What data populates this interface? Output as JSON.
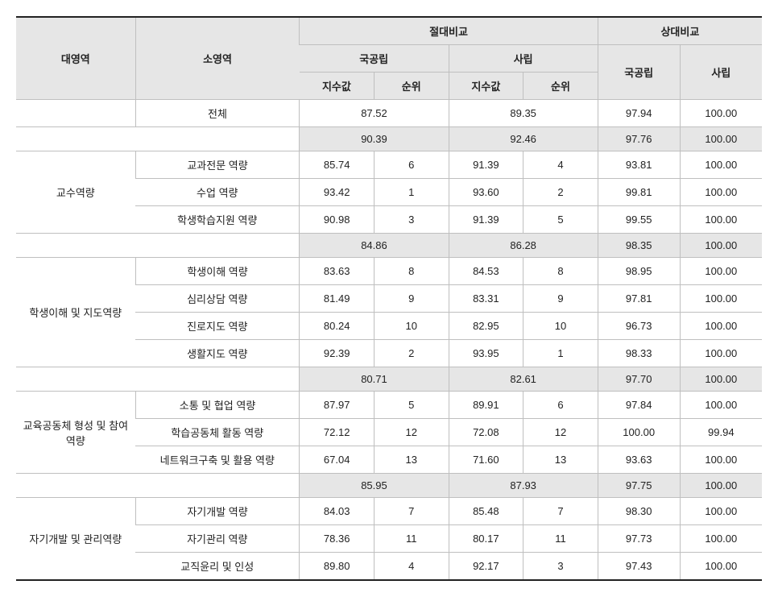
{
  "headers": {
    "majorArea": "대영역",
    "subArea": "소영역",
    "absolute": "절대비교",
    "relative": "상대비교",
    "public": "국공립",
    "private": "사립",
    "index": "지수값",
    "rank": "순위"
  },
  "overall": {
    "label": "전체",
    "abs_public": "87.52",
    "abs_private": "89.35",
    "rel_public": "97.94",
    "rel_private": "100.00"
  },
  "sections": [
    {
      "major": "교수역량",
      "summary": {
        "abs_public": "90.39",
        "abs_private": "92.46",
        "rel_public": "97.76",
        "rel_private": "100.00"
      },
      "rows": [
        {
          "sub": "교과전문 역량",
          "ap_idx": "85.74",
          "ap_rank": "6",
          "pr_idx": "91.39",
          "pr_rank": "4",
          "rp": "93.81",
          "rpr": "100.00"
        },
        {
          "sub": "수업 역량",
          "ap_idx": "93.42",
          "ap_rank": "1",
          "pr_idx": "93.60",
          "pr_rank": "2",
          "rp": "99.81",
          "rpr": "100.00"
        },
        {
          "sub": "학생학습지원 역량",
          "ap_idx": "90.98",
          "ap_rank": "3",
          "pr_idx": "91.39",
          "pr_rank": "5",
          "rp": "99.55",
          "rpr": "100.00"
        }
      ]
    },
    {
      "major": "학생이해 및 지도역량",
      "summary": {
        "abs_public": "84.86",
        "abs_private": "86.28",
        "rel_public": "98.35",
        "rel_private": "100.00"
      },
      "rows": [
        {
          "sub": "학생이해 역량",
          "ap_idx": "83.63",
          "ap_rank": "8",
          "pr_idx": "84.53",
          "pr_rank": "8",
          "rp": "98.95",
          "rpr": "100.00"
        },
        {
          "sub": "심리상담 역량",
          "ap_idx": "81.49",
          "ap_rank": "9",
          "pr_idx": "83.31",
          "pr_rank": "9",
          "rp": "97.81",
          "rpr": "100.00"
        },
        {
          "sub": "진로지도 역량",
          "ap_idx": "80.24",
          "ap_rank": "10",
          "pr_idx": "82.95",
          "pr_rank": "10",
          "rp": "96.73",
          "rpr": "100.00"
        },
        {
          "sub": "생활지도 역량",
          "ap_idx": "92.39",
          "ap_rank": "2",
          "pr_idx": "93.95",
          "pr_rank": "1",
          "rp": "98.33",
          "rpr": "100.00"
        }
      ]
    },
    {
      "major": "교육공동체 형성 및 참여역량",
      "summary": {
        "abs_public": "80.71",
        "abs_private": "82.61",
        "rel_public": "97.70",
        "rel_private": "100.00"
      },
      "rows": [
        {
          "sub": "소통 및 협업 역량",
          "ap_idx": "87.97",
          "ap_rank": "5",
          "pr_idx": "89.91",
          "pr_rank": "6",
          "rp": "97.84",
          "rpr": "100.00"
        },
        {
          "sub": "학습공동체 활동 역량",
          "ap_idx": "72.12",
          "ap_rank": "12",
          "pr_idx": "72.08",
          "pr_rank": "12",
          "rp": "100.00",
          "rpr": "99.94"
        },
        {
          "sub": "네트워크구축 및 활용 역량",
          "ap_idx": "67.04",
          "ap_rank": "13",
          "pr_idx": "71.60",
          "pr_rank": "13",
          "rp": "93.63",
          "rpr": "100.00"
        }
      ]
    },
    {
      "major": "자기개발 및 관리역량",
      "summary": {
        "abs_public": "85.95",
        "abs_private": "87.93",
        "rel_public": "97.75",
        "rel_private": "100.00"
      },
      "rows": [
        {
          "sub": "자기개발 역량",
          "ap_idx": "84.03",
          "ap_rank": "7",
          "pr_idx": "85.48",
          "pr_rank": "7",
          "rp": "98.30",
          "rpr": "100.00"
        },
        {
          "sub": "자기관리 역량",
          "ap_idx": "78.36",
          "ap_rank": "11",
          "pr_idx": "80.17",
          "pr_rank": "11",
          "rp": "97.73",
          "rpr": "100.00"
        },
        {
          "sub": "교직윤리 및 인성",
          "ap_idx": "89.80",
          "ap_rank": "4",
          "pr_idx": "92.17",
          "pr_rank": "3",
          "rp": "97.43",
          "rpr": "100.00"
        }
      ]
    }
  ],
  "layout": {
    "col_widths_pct": [
      16,
      22,
      10,
      10,
      10,
      10,
      11,
      11
    ]
  }
}
